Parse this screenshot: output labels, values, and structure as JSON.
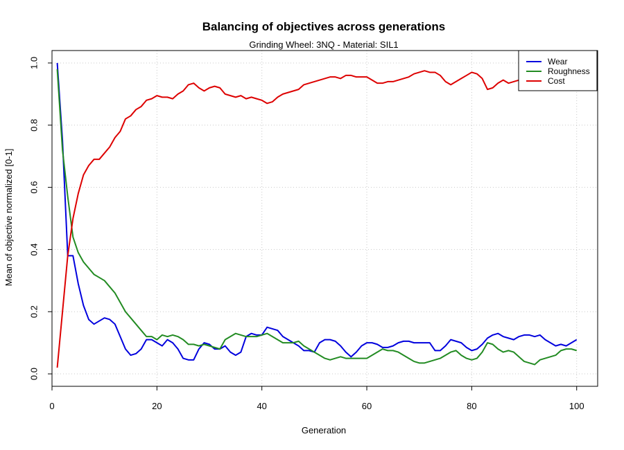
{
  "chart_data": {
    "type": "line",
    "title": "Balancing of objectives across generations",
    "subtitle": "Grinding Wheel: 3NQ - Material: SIL1",
    "xlabel": "Generation",
    "ylabel": "Mean of objective normalized [0-1]",
    "xlim": [
      0,
      104
    ],
    "ylim": [
      -0.04,
      1.04
    ],
    "xticks": [
      0,
      20,
      40,
      60,
      80,
      100
    ],
    "yticks": [
      0.0,
      0.2,
      0.4,
      0.6,
      0.8,
      1.0
    ],
    "xtick_labels": [
      "0",
      "20",
      "40",
      "60",
      "80",
      "100"
    ],
    "ytick_labels": [
      "0.0",
      "0.2",
      "0.4",
      "0.6",
      "0.8",
      "1.0"
    ],
    "grid": true,
    "legend_position": "top-right",
    "x": [
      1,
      2,
      3,
      4,
      5,
      6,
      7,
      8,
      9,
      10,
      11,
      12,
      13,
      14,
      15,
      16,
      17,
      18,
      19,
      20,
      21,
      22,
      23,
      24,
      25,
      26,
      27,
      28,
      29,
      30,
      31,
      32,
      33,
      34,
      35,
      36,
      37,
      38,
      39,
      40,
      41,
      42,
      43,
      44,
      45,
      46,
      47,
      48,
      49,
      50,
      51,
      52,
      53,
      54,
      55,
      56,
      57,
      58,
      59,
      60,
      61,
      62,
      63,
      64,
      65,
      66,
      67,
      68,
      69,
      70,
      71,
      72,
      73,
      74,
      75,
      76,
      77,
      78,
      79,
      80,
      81,
      82,
      83,
      84,
      85,
      86,
      87,
      88,
      89,
      90,
      91,
      92,
      93,
      94,
      95,
      96,
      97,
      98,
      99,
      100
    ],
    "series": [
      {
        "name": "Wear",
        "color": "#0000dd",
        "values": [
          1.0,
          0.75,
          0.38,
          0.38,
          0.29,
          0.22,
          0.175,
          0.16,
          0.17,
          0.18,
          0.175,
          0.16,
          0.12,
          0.08,
          0.06,
          0.065,
          0.08,
          0.11,
          0.11,
          0.1,
          0.09,
          0.11,
          0.1,
          0.08,
          0.05,
          0.045,
          0.045,
          0.08,
          0.1,
          0.095,
          0.08,
          0.08,
          0.09,
          0.07,
          0.06,
          0.07,
          0.12,
          0.13,
          0.125,
          0.125,
          0.15,
          0.145,
          0.14,
          0.12,
          0.11,
          0.1,
          0.09,
          0.075,
          0.075,
          0.07,
          0.1,
          0.11,
          0.11,
          0.105,
          0.09,
          0.07,
          0.055,
          0.07,
          0.09,
          0.1,
          0.1,
          0.095,
          0.085,
          0.085,
          0.09,
          0.1,
          0.105,
          0.105,
          0.1,
          0.1,
          0.1,
          0.1,
          0.075,
          0.075,
          0.09,
          0.11,
          0.105,
          0.1,
          0.085,
          0.075,
          0.08,
          0.095,
          0.115,
          0.125,
          0.13,
          0.12,
          0.115,
          0.11,
          0.12,
          0.125,
          0.125,
          0.12,
          0.125,
          0.11,
          0.1,
          0.09,
          0.095,
          0.09,
          0.1,
          0.11
        ]
      },
      {
        "name": "Roughness",
        "color": "#228b22",
        "values": [
          0.98,
          0.72,
          0.57,
          0.44,
          0.39,
          0.36,
          0.34,
          0.32,
          0.31,
          0.3,
          0.28,
          0.26,
          0.23,
          0.2,
          0.18,
          0.16,
          0.14,
          0.12,
          0.12,
          0.11,
          0.125,
          0.12,
          0.125,
          0.12,
          0.11,
          0.095,
          0.095,
          0.09,
          0.095,
          0.09,
          0.085,
          0.08,
          0.11,
          0.12,
          0.13,
          0.125,
          0.12,
          0.12,
          0.12,
          0.125,
          0.13,
          0.12,
          0.11,
          0.1,
          0.1,
          0.1,
          0.105,
          0.09,
          0.08,
          0.07,
          0.06,
          0.05,
          0.045,
          0.05,
          0.055,
          0.05,
          0.05,
          0.05,
          0.05,
          0.05,
          0.06,
          0.07,
          0.08,
          0.075,
          0.075,
          0.07,
          0.06,
          0.05,
          0.04,
          0.035,
          0.035,
          0.04,
          0.045,
          0.05,
          0.06,
          0.07,
          0.075,
          0.06,
          0.05,
          0.045,
          0.05,
          0.07,
          0.1,
          0.095,
          0.08,
          0.07,
          0.075,
          0.07,
          0.055,
          0.04,
          0.035,
          0.03,
          0.045,
          0.05,
          0.055,
          0.06,
          0.075,
          0.08,
          0.08,
          0.075
        ]
      },
      {
        "name": "Cost",
        "color": "#dd0000",
        "values": [
          0.02,
          0.2,
          0.38,
          0.5,
          0.58,
          0.64,
          0.67,
          0.69,
          0.69,
          0.71,
          0.73,
          0.76,
          0.78,
          0.82,
          0.83,
          0.85,
          0.86,
          0.88,
          0.885,
          0.895,
          0.89,
          0.89,
          0.885,
          0.9,
          0.91,
          0.93,
          0.935,
          0.92,
          0.91,
          0.92,
          0.925,
          0.92,
          0.9,
          0.895,
          0.89,
          0.895,
          0.885,
          0.89,
          0.885,
          0.88,
          0.87,
          0.875,
          0.89,
          0.9,
          0.905,
          0.91,
          0.915,
          0.93,
          0.935,
          0.94,
          0.945,
          0.95,
          0.955,
          0.955,
          0.95,
          0.96,
          0.96,
          0.955,
          0.955,
          0.955,
          0.945,
          0.935,
          0.935,
          0.94,
          0.94,
          0.945,
          0.95,
          0.955,
          0.965,
          0.97,
          0.975,
          0.97,
          0.97,
          0.96,
          0.94,
          0.93,
          0.94,
          0.95,
          0.96,
          0.97,
          0.965,
          0.95,
          0.915,
          0.92,
          0.935,
          0.945,
          0.935,
          0.94,
          0.945,
          0.95,
          0.955,
          0.96,
          0.955,
          0.955,
          0.95,
          0.95,
          0.955,
          0.955,
          0.96,
          0.96
        ]
      }
    ]
  }
}
